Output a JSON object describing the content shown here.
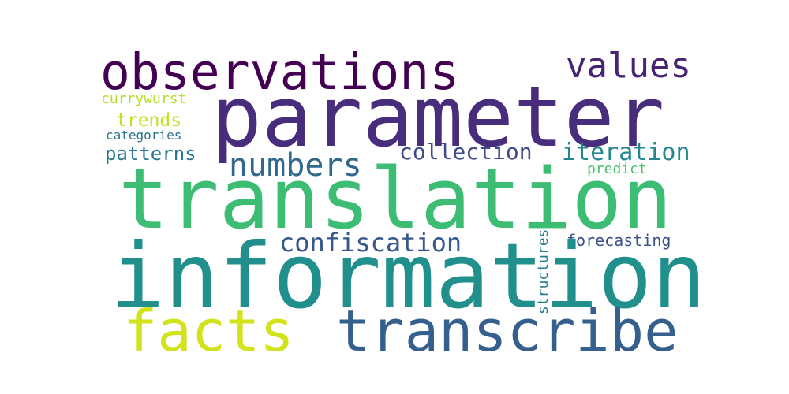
{
  "words": {
    "information": {
      "text": "information",
      "color": "#21908d"
    },
    "translation": {
      "text": "translation",
      "color": "#3dbc74"
    },
    "parameter": {
      "text": "parameter",
      "color": "#472d7b"
    },
    "observations": {
      "text": "observations",
      "color": "#440154"
    },
    "transcribe": {
      "text": "transcribe",
      "color": "#355f8d"
    },
    "facts": {
      "text": "facts",
      "color": "#d2e21b"
    },
    "values": {
      "text": "values",
      "color": "#482475"
    },
    "numbers": {
      "text": "numbers",
      "color": "#31688e"
    },
    "confiscation": {
      "text": "confiscation",
      "color": "#38588c"
    },
    "collection": {
      "text": "collection",
      "color": "#3e4a89"
    },
    "iteration": {
      "text": "iteration",
      "color": "#23888e"
    },
    "patterns": {
      "text": "patterns",
      "color": "#2a788e"
    },
    "trends": {
      "text": "trends",
      "color": "#c2df23"
    },
    "currywurst": {
      "text": "currywurst",
      "color": "#b5de2b"
    },
    "categories": {
      "text": "categories",
      "color": "#2c728e"
    },
    "predict": {
      "text": "predict",
      "color": "#4ac16d"
    },
    "forecasting": {
      "text": "forecasting",
      "color": "#3b528b"
    },
    "structures": {
      "text": "structures",
      "color": "#297b8e"
    }
  }
}
